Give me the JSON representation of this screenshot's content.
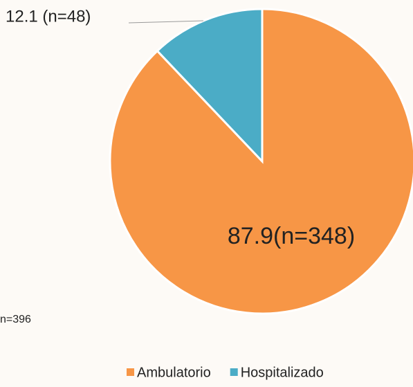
{
  "chart_data": {
    "type": "pie",
    "categories": [
      "Ambulatorio",
      "Hospitalizado"
    ],
    "values": [
      87.9,
      12.1
    ],
    "value_labels": [
      "87.9(n=348)",
      "12.1 (n=48)"
    ],
    "colors": [
      "#f79646",
      "#4bacc6"
    ],
    "annotation": "n=396",
    "legend": "bottom"
  }
}
